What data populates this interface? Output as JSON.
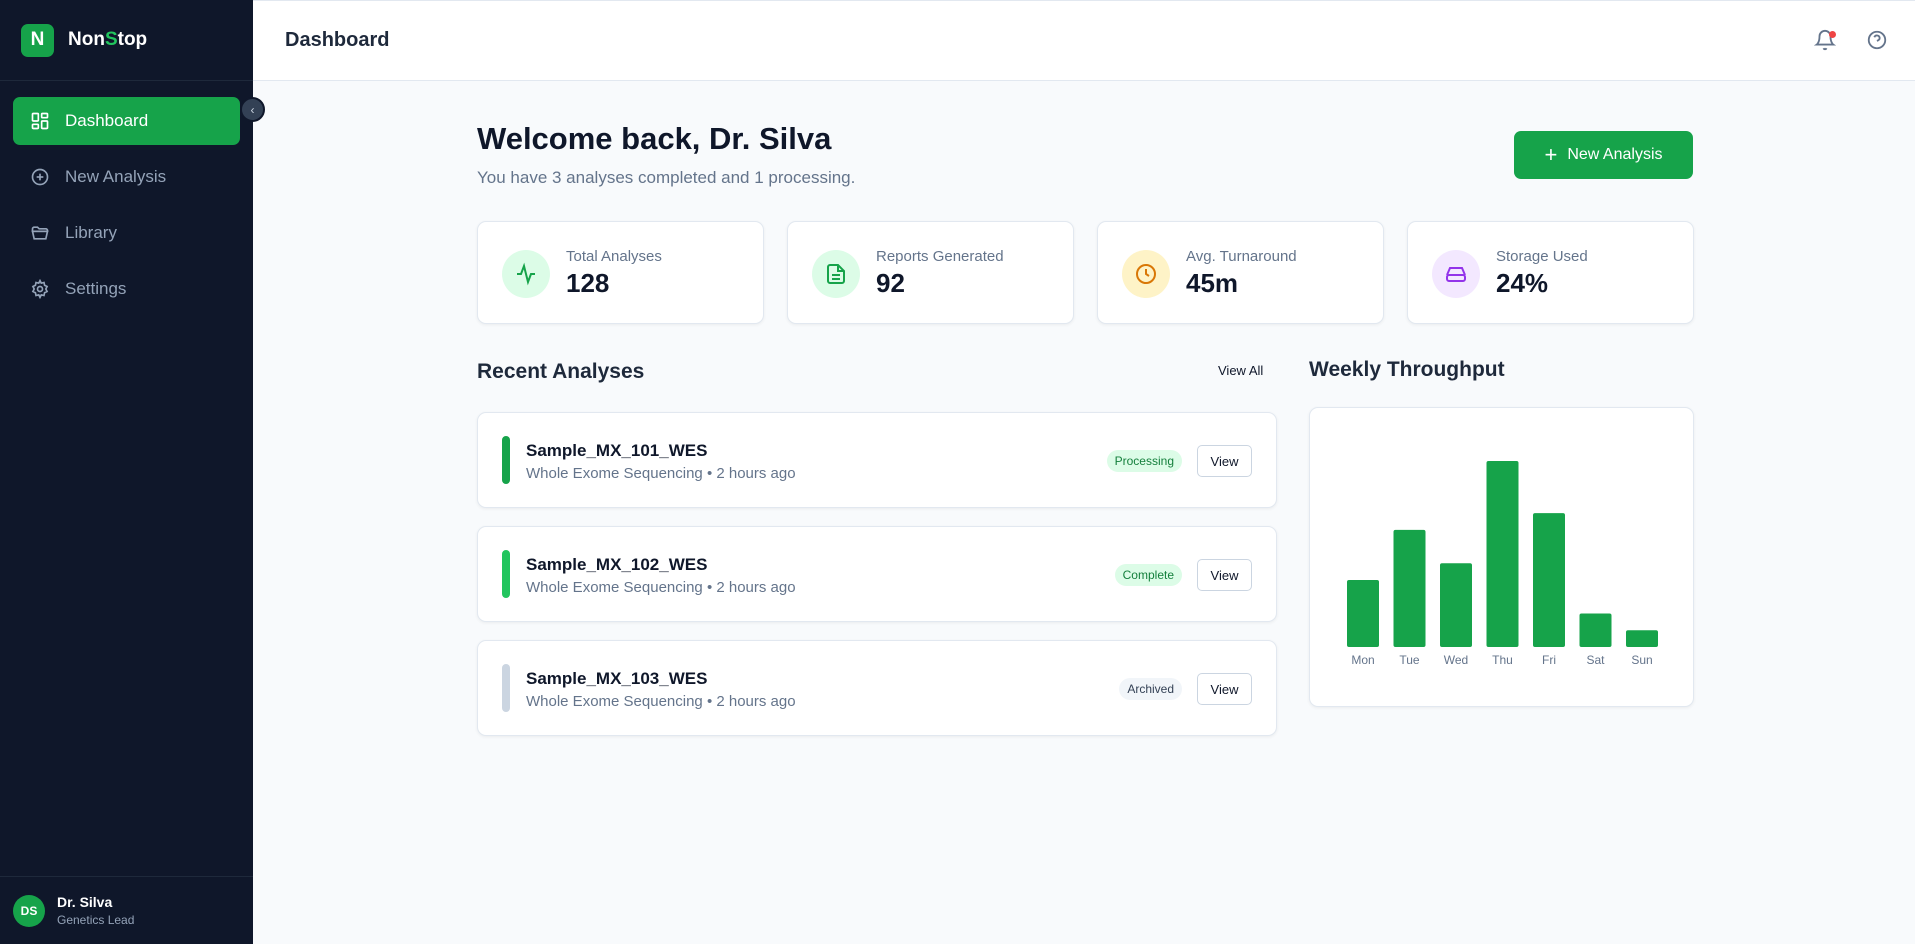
{
  "sidebar": {
    "brand_letter": "N",
    "brand_name_a": "Non",
    "brand_name_b": "S",
    "brand_name_c": "top",
    "items": [
      {
        "label": "Dashboard",
        "icon": "dashboard-icon",
        "active": true
      },
      {
        "label": "New Analysis",
        "icon": "plus-circle-icon",
        "active": false
      },
      {
        "label": "Library",
        "icon": "folder-icon",
        "active": false
      },
      {
        "label": "Settings",
        "icon": "gear-icon",
        "active": false
      }
    ],
    "user": {
      "initials": "DS",
      "name": "Dr. Silva",
      "role": "Genetics Lead"
    }
  },
  "header": {
    "title": "Dashboard"
  },
  "welcome": {
    "title": "Welcome back, Dr. Silva",
    "subtitle": "You have 3 analyses completed and 1 processing.",
    "new_button": "New Analysis"
  },
  "stats": [
    {
      "label": "Total Analyses",
      "value": "128",
      "icon": "activity-icon",
      "color": "#16a34a",
      "bg": "#dcfce7"
    },
    {
      "label": "Reports Generated",
      "value": "92",
      "icon": "document-icon",
      "color": "#16a34a",
      "bg": "#dcfce7"
    },
    {
      "label": "Avg. Turnaround",
      "value": "45m",
      "icon": "clock-icon",
      "color": "#d97706",
      "bg": "#fef3c7"
    },
    {
      "label": "Storage Used",
      "value": "24%",
      "icon": "hard-drive-icon",
      "color": "#9333ea",
      "bg": "#f3e8ff"
    }
  ],
  "recent": {
    "title": "Recent Analyses",
    "view_all": "View All",
    "items": [
      {
        "name": "Sample_MX_101_WES",
        "meta": "Whole Exome Sequencing • 2 hours ago",
        "status": "Processing",
        "bar_color": "#16a34a",
        "badge_bg": "#dcfce7",
        "badge_fg": "#15803d",
        "view": "View"
      },
      {
        "name": "Sample_MX_102_WES",
        "meta": "Whole Exome Sequencing • 2 hours ago",
        "status": "Complete",
        "bar_color": "#22c55e",
        "badge_bg": "#dcfce7",
        "badge_fg": "#15803d",
        "view": "View"
      },
      {
        "name": "Sample_MX_103_WES",
        "meta": "Whole Exome Sequencing • 2 hours ago",
        "status": "Archived",
        "bar_color": "#cbd5e1",
        "badge_bg": "#f1f5f9",
        "badge_fg": "#334155",
        "view": "View"
      }
    ]
  },
  "chart_title": "Weekly Throughput",
  "chart_data": {
    "type": "bar",
    "title": "",
    "categories": [
      "Mon",
      "Tue",
      "Wed",
      "Thu",
      "Fri",
      "Sat",
      "Sun"
    ],
    "values": [
      36,
      63,
      45,
      100,
      72,
      18,
      9
    ],
    "ylim": [
      0,
      100
    ],
    "color": "#16a34a",
    "grid": false
  }
}
